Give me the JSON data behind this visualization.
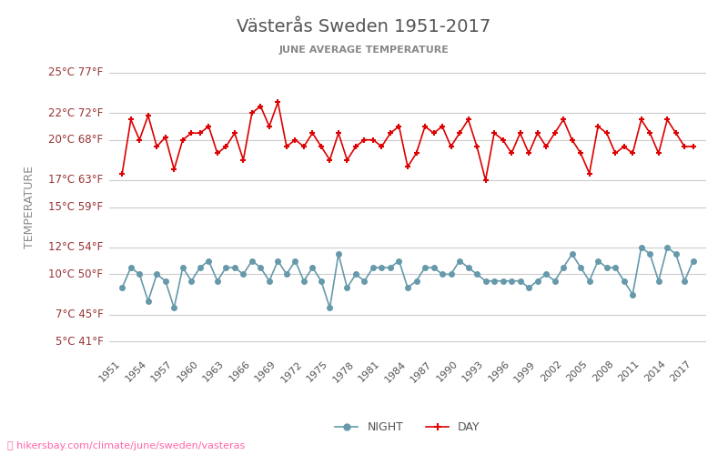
{
  "title": "Västerås Sweden 1951-2017",
  "subtitle": "JUNE AVERAGE TEMPERATURE",
  "ylabel": "TEMPERATURE",
  "footer": "hikersbay.com/climate/june/sweden/vasteras",
  "years": [
    1951,
    1952,
    1953,
    1954,
    1955,
    1956,
    1957,
    1958,
    1959,
    1960,
    1961,
    1962,
    1963,
    1964,
    1965,
    1966,
    1967,
    1968,
    1969,
    1970,
    1971,
    1972,
    1973,
    1974,
    1975,
    1976,
    1977,
    1978,
    1979,
    1980,
    1981,
    1982,
    1983,
    1984,
    1985,
    1986,
    1987,
    1988,
    1989,
    1990,
    1991,
    1992,
    1993,
    1994,
    1995,
    1996,
    1997,
    1998,
    1999,
    2000,
    2001,
    2002,
    2003,
    2004,
    2005,
    2006,
    2007,
    2008,
    2009,
    2010,
    2011,
    2012,
    2013,
    2014,
    2015,
    2016,
    2017
  ],
  "day": [
    17.5,
    21.5,
    20.0,
    21.8,
    19.5,
    20.2,
    17.8,
    20.0,
    20.5,
    20.5,
    21.0,
    19.0,
    19.5,
    20.5,
    18.5,
    22.0,
    22.5,
    21.0,
    22.8,
    19.5,
    20.0,
    19.5,
    20.5,
    19.5,
    18.5,
    20.5,
    18.5,
    19.5,
    20.0,
    20.0,
    19.5,
    20.5,
    21.0,
    18.0,
    19.0,
    21.0,
    20.5,
    21.0,
    19.5,
    20.5,
    21.5,
    19.5,
    17.0,
    20.5,
    20.0,
    19.0,
    20.5,
    19.0,
    20.5,
    19.5,
    20.5,
    21.5,
    20.0,
    19.0,
    17.5,
    21.0,
    20.5,
    19.0,
    19.5,
    19.0,
    21.5,
    20.5,
    19.0,
    21.5,
    20.5,
    19.5,
    19.5
  ],
  "night": [
    9.0,
    10.5,
    10.0,
    8.0,
    10.0,
    9.5,
    7.5,
    10.5,
    9.5,
    10.5,
    11.0,
    9.5,
    10.5,
    10.5,
    10.0,
    11.0,
    10.5,
    9.5,
    11.0,
    10.0,
    11.0,
    9.5,
    10.5,
    9.5,
    7.5,
    11.5,
    9.0,
    10.0,
    9.5,
    10.5,
    10.5,
    10.5,
    11.0,
    9.0,
    9.5,
    10.5,
    10.5,
    10.0,
    10.0,
    11.0,
    10.5,
    10.0,
    9.5,
    9.5,
    9.5,
    9.5,
    9.5,
    9.0,
    9.5,
    10.0,
    9.5,
    10.5,
    11.5,
    10.5,
    9.5,
    11.0,
    10.5,
    10.5,
    9.5,
    8.5,
    12.0,
    11.5,
    9.5,
    12.0,
    11.5,
    9.5,
    11.0
  ],
  "day_color": "#dd0000",
  "night_color": "#6699aa",
  "grid_color": "#cccccc",
  "bg_color": "#ffffff",
  "title_color": "#555555",
  "subtitle_color": "#888888",
  "ytick_labels_c": [
    25,
    22,
    20,
    17,
    15,
    12,
    10,
    7,
    5
  ],
  "ytick_labels_f": [
    77,
    72,
    68,
    63,
    59,
    54,
    50,
    45,
    41
  ],
  "ylim": [
    4,
    26
  ],
  "xtick_years": [
    1951,
    1954,
    1957,
    1960,
    1963,
    1966,
    1969,
    1972,
    1975,
    1978,
    1981,
    1984,
    1987,
    1990,
    1993,
    1996,
    1999,
    2002,
    2005,
    2008,
    2011,
    2014,
    2017
  ]
}
